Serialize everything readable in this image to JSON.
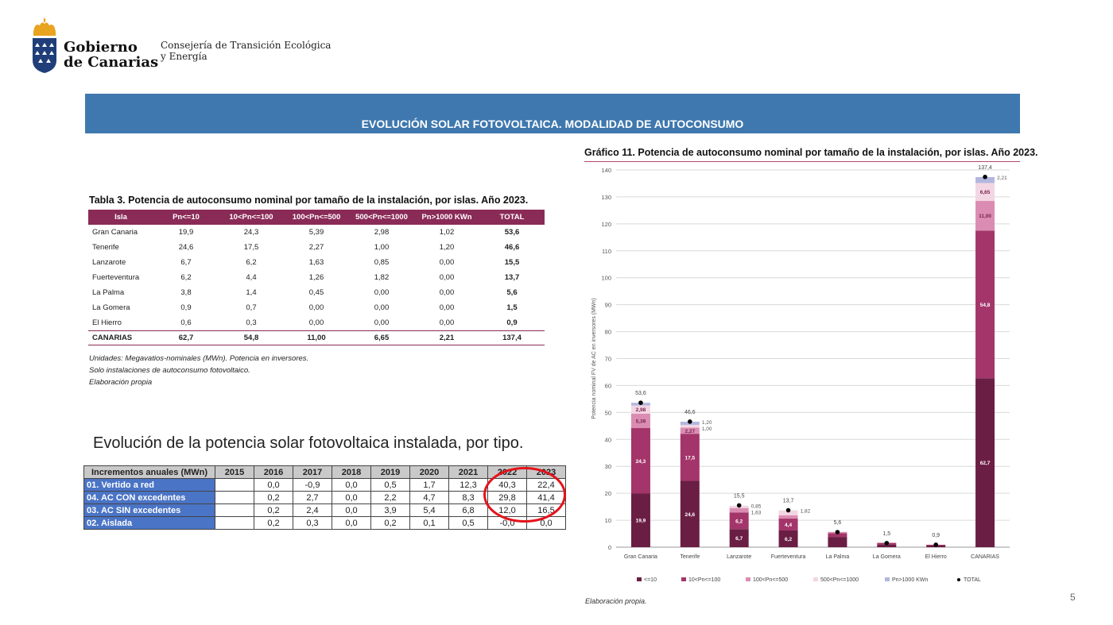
{
  "header": {
    "brand_line1": "Gobierno",
    "brand_line2": "de Canarias",
    "dept_line1": "Consejería de Transición Ecológica",
    "dept_line2": "y Energía",
    "colors": {
      "crest_blue": "#1f3e7a",
      "crest_gold": "#e8a31f"
    }
  },
  "banner": {
    "title": "EVOLUCIÓN SOLAR FOTOVOLTAICA. MODALIDAD DE AUTOCONSUMO",
    "color": "#3f78ae"
  },
  "table3": {
    "title": "Tabla 3. Potencia de autoconsumo nominal por tamaño de la instalación, por islas. Año 2023.",
    "headers": [
      "Isla",
      "Pn<=10",
      "10<Pn<=100",
      "100<Pn<=500",
      "500<Pn<=1000",
      "Pn>1000 KWn",
      "TOTAL"
    ],
    "rows": [
      [
        "Gran Canaria",
        "19,9",
        "24,3",
        "5,39",
        "2,98",
        "1,02",
        "53,6"
      ],
      [
        "Tenerife",
        "24,6",
        "17,5",
        "2,27",
        "1,00",
        "1,20",
        "46,6"
      ],
      [
        "Lanzarote",
        "6,7",
        "6,2",
        "1,63",
        "0,85",
        "0,00",
        "15,5"
      ],
      [
        "Fuerteventura",
        "6,2",
        "4,4",
        "1,26",
        "1,82",
        "0,00",
        "13,7"
      ],
      [
        "La Palma",
        "3,8",
        "1,4",
        "0,45",
        "0,00",
        "0,00",
        "5,6"
      ],
      [
        "La Gomera",
        "0,9",
        "0,7",
        "0,00",
        "0,00",
        "0,00",
        "1,5"
      ],
      [
        "El Hierro",
        "0,6",
        "0,3",
        "0,00",
        "0,00",
        "0,00",
        "0,9"
      ]
    ],
    "total": [
      "CANARIAS",
      "62,7",
      "54,8",
      "11,00",
      "6,65",
      "2,21",
      "137,4"
    ],
    "notes": [
      "Unidades: Megavatios-nominales (MWn). Potencia en inversores.",
      "Solo instalaciones de autoconsumo fotovoltaico.",
      "Elaboración propia"
    ]
  },
  "evolution": {
    "title": "Evolución de la potencia solar fotovoltaica instalada, por tipo.",
    "header": "Incrementos anuales (MWn)",
    "years": [
      "2015",
      "2016",
      "2017",
      "2018",
      "2019",
      "2020",
      "2021",
      "2022",
      "2023"
    ],
    "rows": [
      {
        "label": "01. Vertido a red",
        "values": [
          "",
          "0,0",
          "-0,9",
          "0,0",
          "0,5",
          "1,7",
          "12,3",
          "40,3",
          "22,4"
        ]
      },
      {
        "label": "04. AC CON excedentes",
        "values": [
          "",
          "0,2",
          "2,7",
          "0,0",
          "2,2",
          "4,7",
          "8,3",
          "29,8",
          "41,4"
        ]
      },
      {
        "label": "03. AC SIN excedentes",
        "values": [
          "",
          "0,2",
          "2,4",
          "0,0",
          "3,9",
          "5,4",
          "6,8",
          "12,0",
          "16,5"
        ]
      },
      {
        "label": "02. Aislada",
        "values": [
          "",
          "0,2",
          "0,3",
          "0,0",
          "0,2",
          "0,1",
          "0,5",
          "-0,0",
          "0,0"
        ]
      }
    ],
    "highlight_color": "#e5121a"
  },
  "chart_title": "Gráfico 11. Potencia de autoconsumo nominal por tamaño de la instalación, por islas. Año 2023.",
  "chart_data": {
    "type": "bar",
    "stacked": true,
    "ylabel": "Potencia nominal FV de AC en inversores (MWn)",
    "ylim": [
      0,
      140
    ],
    "yticks": [
      0,
      10,
      20,
      30,
      40,
      50,
      60,
      70,
      80,
      90,
      100,
      110,
      120,
      130,
      140
    ],
    "grid": true,
    "legend_position": "bottom",
    "categories": [
      "Gran Canaria",
      "Tenerife",
      "Lanzarote",
      "Fuerteventura",
      "La Palma",
      "La Gomera",
      "El Hierro",
      "CANARIAS"
    ],
    "series": [
      {
        "name": "<=10",
        "color": "#6b1e44",
        "values": [
          19.9,
          24.6,
          6.7,
          6.2,
          3.8,
          0.9,
          0.6,
          62.7
        ],
        "labels": [
          "19,9",
          "24,6",
          "6,7",
          "6,2",
          "",
          "",
          "",
          "62,7"
        ]
      },
      {
        "name": "10<Pn<=100",
        "color": "#a3356a",
        "values": [
          24.3,
          17.5,
          6.2,
          4.4,
          1.4,
          0.7,
          0.3,
          54.8
        ],
        "labels": [
          "24,3",
          "17,5",
          "6,2",
          "4,4",
          "",
          "",
          "",
          "54,8"
        ]
      },
      {
        "name": "100<Pn<=500",
        "color": "#db8cb2",
        "values": [
          5.39,
          2.27,
          1.63,
          1.26,
          0.45,
          0,
          0,
          11.0
        ],
        "labels": [
          "5,39",
          "2,27",
          "",
          "",
          "",
          "",
          "",
          "11,00"
        ]
      },
      {
        "name": "500<Pn<=1000",
        "color": "#f3d6e3",
        "values": [
          2.98,
          1.0,
          0.85,
          1.82,
          0,
          0,
          0,
          6.65
        ],
        "labels": [
          "2,98",
          "",
          "",
          "",
          "",
          "",
          "",
          "6,65"
        ]
      },
      {
        "name": "Pn>1000 KWn",
        "color": "#b3b7df",
        "values": [
          1.02,
          1.2,
          0,
          0,
          0,
          0,
          0,
          2.21
        ],
        "labels": [
          "",
          "",
          "",
          "",
          "",
          "",
          "",
          ""
        ]
      }
    ],
    "totals": {
      "name": "TOTAL",
      "values": [
        53.6,
        46.6,
        15.5,
        13.7,
        5.6,
        1.5,
        0.9,
        137.4
      ],
      "labels": [
        "53,6",
        "46,6",
        "15,5",
        "13,7",
        "5,6",
        "1,5",
        "0,9",
        "137,4"
      ]
    },
    "side_labels": [
      {
        "category": "Tenerife",
        "lines": [
          "1,20",
          "1,00"
        ]
      },
      {
        "category": "Lanzarote",
        "lines": [
          "0,85",
          "1,63"
        ]
      },
      {
        "category": "Fuerteventura",
        "lines": [
          "1,82"
        ]
      },
      {
        "category": "CANARIAS",
        "lines": [
          "2,21"
        ]
      }
    ],
    "source": "Elaboración propia."
  },
  "page_number": "5"
}
